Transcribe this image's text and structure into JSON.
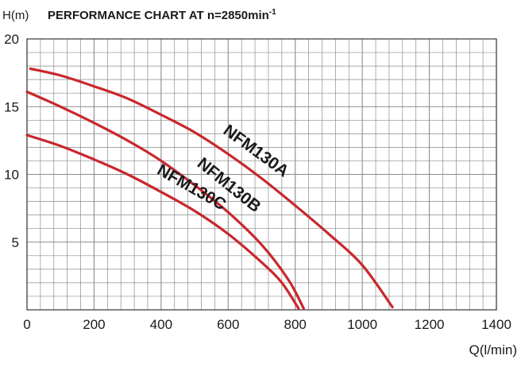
{
  "chart_data": {
    "type": "line",
    "title": "PERFORMANCE CHART AT n=2850min",
    "title_superscript": "-1",
    "ylabel": "H(m)",
    "xlabel": "Q(l/min)",
    "xlim": [
      0,
      1400
    ],
    "ylim": [
      0,
      20
    ],
    "x_ticks": [
      0,
      200,
      400,
      600,
      800,
      1000,
      1200,
      1400
    ],
    "y_ticks": [
      5,
      10,
      15,
      20
    ],
    "x_minor_step": 40,
    "y_minor_step": 1,
    "grid": true,
    "colors": {
      "curve": "#c8282d",
      "grid": "#8c8c8c",
      "text": "#1a1a1a"
    },
    "series": [
      {
        "name": "NFM130A",
        "points": [
          [
            10,
            17.8
          ],
          [
            100,
            17.3
          ],
          [
            200,
            16.5
          ],
          [
            300,
            15.6
          ],
          [
            400,
            14.4
          ],
          [
            500,
            13.1
          ],
          [
            600,
            11.5
          ],
          [
            700,
            9.7
          ],
          [
            800,
            7.7
          ],
          [
            900,
            5.6
          ],
          [
            1000,
            3.3
          ],
          [
            1090,
            0.2
          ]
        ]
      },
      {
        "name": "NFM130B",
        "points": [
          [
            0,
            16.1
          ],
          [
            100,
            15.0
          ],
          [
            200,
            13.8
          ],
          [
            300,
            12.5
          ],
          [
            400,
            11.0
          ],
          [
            500,
            9.2
          ],
          [
            600,
            7.2
          ],
          [
            700,
            4.8
          ],
          [
            780,
            2.2
          ],
          [
            825,
            0.1
          ]
        ]
      },
      {
        "name": "NFM130C",
        "points": [
          [
            0,
            12.9
          ],
          [
            100,
            12.1
          ],
          [
            200,
            11.1
          ],
          [
            300,
            10.0
          ],
          [
            400,
            8.7
          ],
          [
            500,
            7.3
          ],
          [
            600,
            5.6
          ],
          [
            700,
            3.5
          ],
          [
            760,
            2.0
          ],
          [
            810,
            0.1
          ]
        ]
      }
    ]
  }
}
